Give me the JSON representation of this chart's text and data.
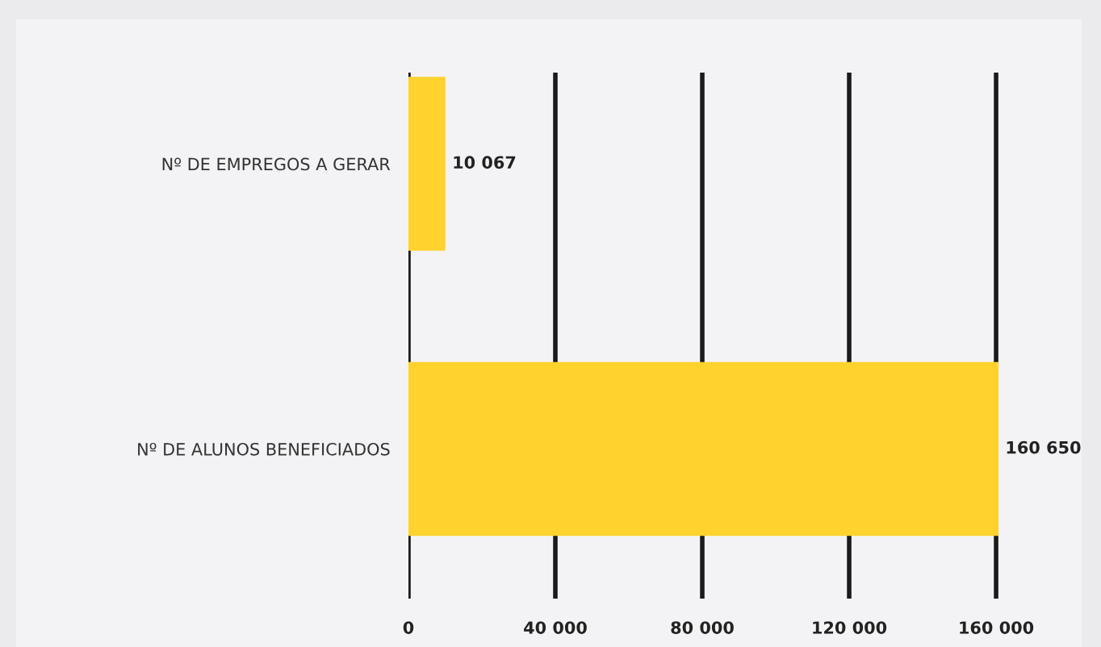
{
  "chart_data": {
    "type": "bar",
    "orientation": "horizontal",
    "categories": [
      "Nº DE EMPREGOS A GERAR",
      "Nº DE ALUNOS BENEFICIADOS"
    ],
    "values": [
      10067,
      160650
    ],
    "value_labels": [
      "10 067",
      "160 650"
    ],
    "color": "#ffd22e",
    "xlim": [
      0,
      160650
    ],
    "xticks": [
      0,
      {
        "value": 40000,
        "label": "40 000"
      },
      {
        "value": 80000,
        "label": "80 000"
      },
      {
        "value": 120000,
        "label": "120 000"
      },
      {
        "value": 160000,
        "label": "160 000"
      }
    ],
    "grid": "x"
  }
}
